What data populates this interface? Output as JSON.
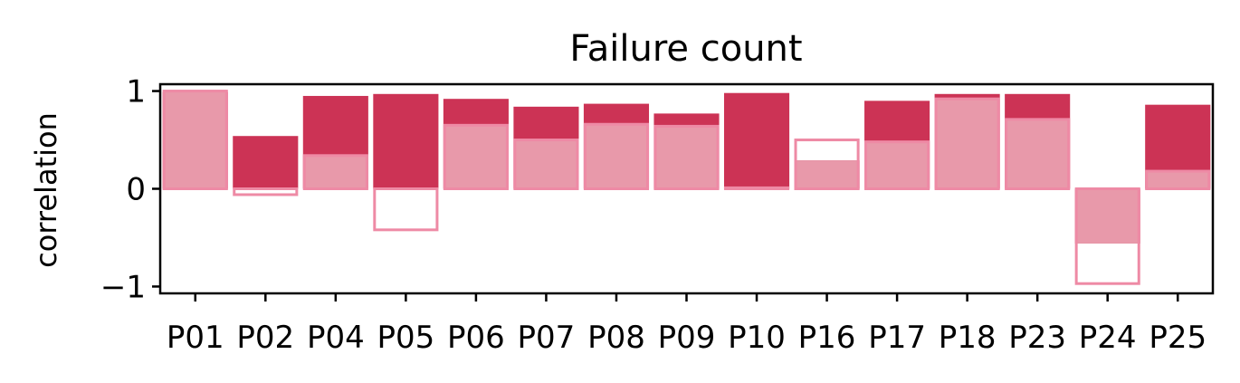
{
  "chart_data": {
    "type": "bar",
    "title": "Failure count",
    "xlabel": "",
    "ylabel": "correlation",
    "ylim": [
      -1.07,
      1.07
    ],
    "yticks": [
      -1,
      0,
      1
    ],
    "ytick_labels": [
      "−1",
      "0",
      "1"
    ],
    "grid": false,
    "categories": [
      "P01",
      "P02",
      "P04",
      "P05",
      "P06",
      "P07",
      "P08",
      "P09",
      "P10",
      "P16",
      "P17",
      "P18",
      "P23",
      "P24",
      "P25"
    ],
    "series": [
      {
        "style": "filled-dark",
        "values": [
          0.99,
          0.54,
          0.95,
          0.97,
          0.92,
          0.84,
          0.87,
          0.77,
          0.98,
          0.29,
          0.9,
          0.97,
          0.97,
          -0.56,
          0.86
        ]
      },
      {
        "style": "light-overlay",
        "values": [
          1.0,
          -0.06,
          0.34,
          -0.42,
          0.65,
          0.5,
          0.66,
          0.64,
          0.01,
          0.5,
          0.48,
          0.92,
          0.71,
          -0.97,
          0.18
        ]
      }
    ],
    "colors": {
      "dark": "#cc3355",
      "light_fill": "#e899aa",
      "light_edge": "#ee8aa5"
    }
  }
}
